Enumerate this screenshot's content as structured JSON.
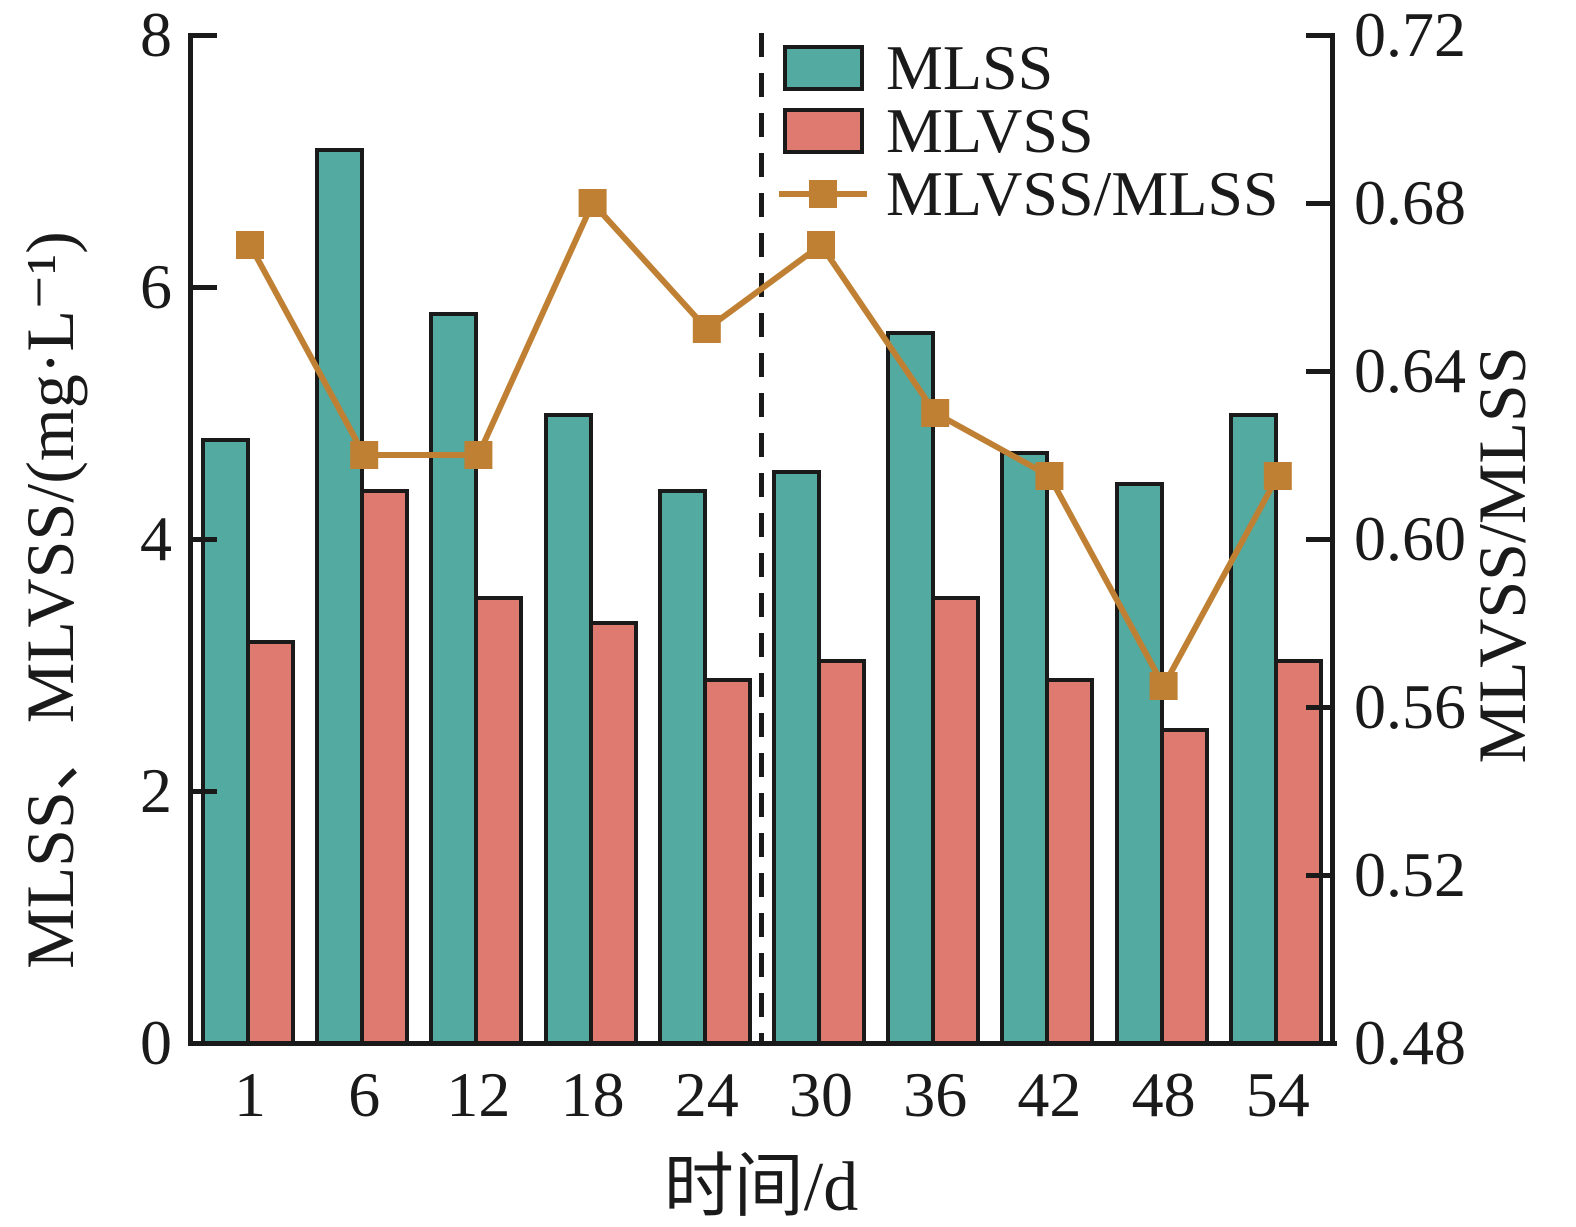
{
  "chart_data": {
    "type": "bar",
    "categories": [
      "1",
      "6",
      "12",
      "18",
      "24",
      "30",
      "36",
      "42",
      "48",
      "54"
    ],
    "xlabel": "时间/d",
    "ylabel_left": "MLSS、MLVSS/(mg·L⁻¹)",
    "ylabel_right": "MLVSS/MLSS",
    "left_axis": {
      "min": 0,
      "max": 8,
      "tick_labels": [
        "0",
        "2",
        "4",
        "6",
        "8"
      ]
    },
    "right_axis": {
      "min": 0.48,
      "max": 0.72,
      "tick_labels": [
        "0.48",
        "0.52",
        "0.56",
        "0.60",
        "0.64",
        "0.68",
        "0.72"
      ]
    },
    "series": [
      {
        "name": "MLSS",
        "type": "bar",
        "axis": "left",
        "color": "#52AAA0",
        "values": [
          4.8,
          7.1,
          5.8,
          5.0,
          4.4,
          4.55,
          5.65,
          4.7,
          4.45,
          5.0
        ]
      },
      {
        "name": "MLVSS",
        "type": "bar",
        "axis": "left",
        "color": "#DF7A70",
        "values": [
          3.2,
          4.4,
          3.55,
          3.35,
          2.9,
          3.05,
          3.55,
          2.9,
          2.5,
          3.05
        ]
      },
      {
        "name": "MLVSS/MLSS",
        "type": "line",
        "axis": "right",
        "color": "#BF8033",
        "marker": "square",
        "values": [
          0.67,
          0.62,
          0.62,
          0.68,
          0.65,
          0.67,
          0.63,
          0.615,
          0.565,
          0.615
        ]
      }
    ],
    "divider": {
      "between_categories": [
        "24",
        "30"
      ],
      "style": "dashed"
    },
    "legend_position": "top-right",
    "grid": false
  },
  "colors": {
    "axis": "#1A1A1A",
    "background": "#FFFFFF"
  }
}
